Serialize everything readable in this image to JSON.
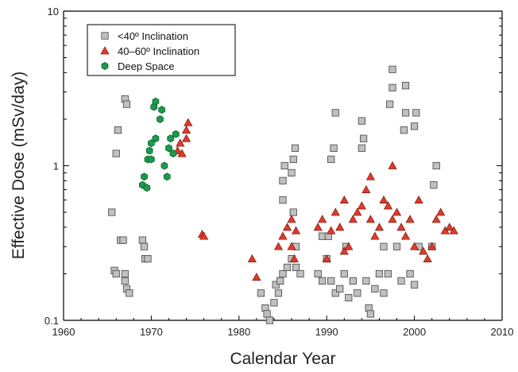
{
  "chart_data": {
    "type": "scatter",
    "xlabel": "Calendar Year",
    "ylabel": "Effective Dose (mSv/day)",
    "xlim": [
      1960,
      2010
    ],
    "ylim": [
      0.1,
      10
    ],
    "yscale": "log",
    "x_ticks": [
      "1960",
      "1970",
      "1980",
      "1990",
      "2000",
      "2010"
    ],
    "y_ticks": [
      "0.1",
      "1",
      "10"
    ],
    "legend_position": "top-left",
    "series": [
      {
        "name": "<40º Inclination",
        "marker": "square",
        "color": "#c0c0c0",
        "points": [
          [
            1965.5,
            0.5
          ],
          [
            1965.8,
            0.21
          ],
          [
            1966.0,
            0.2
          ],
          [
            1966.0,
            1.2
          ],
          [
            1966.2,
            1.7
          ],
          [
            1966.5,
            0.33
          ],
          [
            1966.8,
            0.33
          ],
          [
            1967.0,
            0.2
          ],
          [
            1967.0,
            2.7
          ],
          [
            1967.2,
            2.5
          ],
          [
            1967.0,
            0.18
          ],
          [
            1967.2,
            0.16
          ],
          [
            1967.5,
            0.15
          ],
          [
            1969.0,
            0.33
          ],
          [
            1969.2,
            0.3
          ],
          [
            1969.3,
            0.25
          ],
          [
            1969.6,
            0.25
          ],
          [
            1982.5,
            0.15
          ],
          [
            1983.0,
            0.12
          ],
          [
            1983.2,
            0.11
          ],
          [
            1983.5,
            0.1
          ],
          [
            1984.0,
            0.13
          ],
          [
            1984.2,
            0.17
          ],
          [
            1984.5,
            0.15
          ],
          [
            1984.7,
            0.18
          ],
          [
            1985.0,
            0.6
          ],
          [
            1985.0,
            0.8
          ],
          [
            1985.2,
            1.0
          ],
          [
            1985.0,
            0.2
          ],
          [
            1985.5,
            0.22
          ],
          [
            1986.0,
            0.25
          ],
          [
            1986.0,
            0.9
          ],
          [
            1986.2,
            1.1
          ],
          [
            1986.4,
            1.3
          ],
          [
            1986.2,
            0.5
          ],
          [
            1986.5,
            0.3
          ],
          [
            1986.5,
            0.22
          ],
          [
            1987.0,
            0.2
          ],
          [
            1989.0,
            0.2
          ],
          [
            1989.5,
            0.18
          ],
          [
            1989.5,
            0.35
          ],
          [
            1990.0,
            0.25
          ],
          [
            1990.2,
            0.35
          ],
          [
            1990.5,
            0.18
          ],
          [
            1990.5,
            1.1
          ],
          [
            1990.8,
            1.3
          ],
          [
            1991.0,
            2.2
          ],
          [
            1991.0,
            0.15
          ],
          [
            1991.5,
            0.16
          ],
          [
            1992.0,
            0.2
          ],
          [
            1992.2,
            0.3
          ],
          [
            1992.5,
            0.14
          ],
          [
            1993.0,
            0.18
          ],
          [
            1993.5,
            0.15
          ],
          [
            1994.0,
            1.3
          ],
          [
            1994.2,
            1.5
          ],
          [
            1994.0,
            1.95
          ],
          [
            1994.5,
            0.18
          ],
          [
            1994.8,
            0.12
          ],
          [
            1995.0,
            0.11
          ],
          [
            1995.5,
            0.16
          ],
          [
            1996.0,
            0.2
          ],
          [
            1996.5,
            0.3
          ],
          [
            1996.5,
            0.15
          ],
          [
            1997.0,
            0.2
          ],
          [
            1997.2,
            2.5
          ],
          [
            1997.5,
            3.2
          ],
          [
            1997.5,
            4.2
          ],
          [
            1998.0,
            0.3
          ],
          [
            1998.5,
            0.18
          ],
          [
            1998.8,
            1.7
          ],
          [
            1999.0,
            2.2
          ],
          [
            1999.0,
            3.3
          ],
          [
            1999.5,
            0.2
          ],
          [
            2000.0,
            0.17
          ],
          [
            2000.0,
            1.8
          ],
          [
            2000.2,
            2.2
          ],
          [
            2000.5,
            0.3
          ],
          [
            2002.0,
            0.3
          ],
          [
            2002.2,
            0.75
          ],
          [
            2002.5,
            1.0
          ]
        ]
      },
      {
        "name": "40–60º Inclination",
        "marker": "triangle",
        "color": "#e03a2a",
        "points": [
          [
            1973.0,
            1.25
          ],
          [
            1973.3,
            1.4
          ],
          [
            1973.5,
            1.2
          ],
          [
            1974.0,
            1.7
          ],
          [
            1974.2,
            1.9
          ],
          [
            1974.0,
            1.5
          ],
          [
            1975.8,
            0.36
          ],
          [
            1976.0,
            0.35
          ],
          [
            1981.5,
            0.25
          ],
          [
            1982.0,
            0.19
          ],
          [
            1984.5,
            0.3
          ],
          [
            1985.0,
            0.35
          ],
          [
            1985.5,
            0.4
          ],
          [
            1986.0,
            0.3
          ],
          [
            1986.0,
            0.45
          ],
          [
            1986.5,
            0.38
          ],
          [
            1986.3,
            0.25
          ],
          [
            1989.0,
            0.4
          ],
          [
            1989.5,
            0.45
          ],
          [
            1990.0,
            0.25
          ],
          [
            1990.5,
            0.38
          ],
          [
            1991.0,
            0.5
          ],
          [
            1991.5,
            0.4
          ],
          [
            1992.0,
            0.6
          ],
          [
            1992.0,
            0.28
          ],
          [
            1992.5,
            0.3
          ],
          [
            1993.0,
            0.45
          ],
          [
            1993.5,
            0.5
          ],
          [
            1994.0,
            0.55
          ],
          [
            1994.5,
            0.7
          ],
          [
            1995.0,
            0.45
          ],
          [
            1995.5,
            0.35
          ],
          [
            1995.0,
            0.85
          ],
          [
            1996.0,
            0.4
          ],
          [
            1996.5,
            0.6
          ],
          [
            1997.0,
            0.55
          ],
          [
            1997.5,
            0.45
          ],
          [
            1997.5,
            1.0
          ],
          [
            1998.0,
            0.5
          ],
          [
            1998.5,
            0.4
          ],
          [
            1999.0,
            0.35
          ],
          [
            1999.5,
            0.45
          ],
          [
            2000.0,
            0.3
          ],
          [
            2000.5,
            0.6
          ],
          [
            2001.0,
            0.28
          ],
          [
            2001.5,
            0.25
          ],
          [
            2002.0,
            0.3
          ],
          [
            2002.5,
            0.45
          ],
          [
            2003.0,
            0.5
          ],
          [
            2003.5,
            0.38
          ],
          [
            2004.0,
            0.4
          ],
          [
            2004.5,
            0.38
          ]
        ]
      },
      {
        "name": "Deep Space",
        "marker": "hexagon",
        "color": "#1a9a4a",
        "points": [
          [
            1969.0,
            0.75
          ],
          [
            1969.2,
            0.85
          ],
          [
            1969.5,
            0.72
          ],
          [
            1969.6,
            1.1
          ],
          [
            1969.8,
            1.25
          ],
          [
            1970.0,
            1.4
          ],
          [
            1970.0,
            1.1
          ],
          [
            1970.3,
            2.4
          ],
          [
            1970.5,
            2.6
          ],
          [
            1970.5,
            1.5
          ],
          [
            1971.0,
            2.0
          ],
          [
            1971.2,
            2.3
          ],
          [
            1971.5,
            1.0
          ],
          [
            1971.8,
            0.85
          ],
          [
            1972.0,
            1.3
          ],
          [
            1972.2,
            1.5
          ],
          [
            1972.5,
            1.2
          ],
          [
            1972.8,
            1.6
          ]
        ]
      }
    ]
  }
}
